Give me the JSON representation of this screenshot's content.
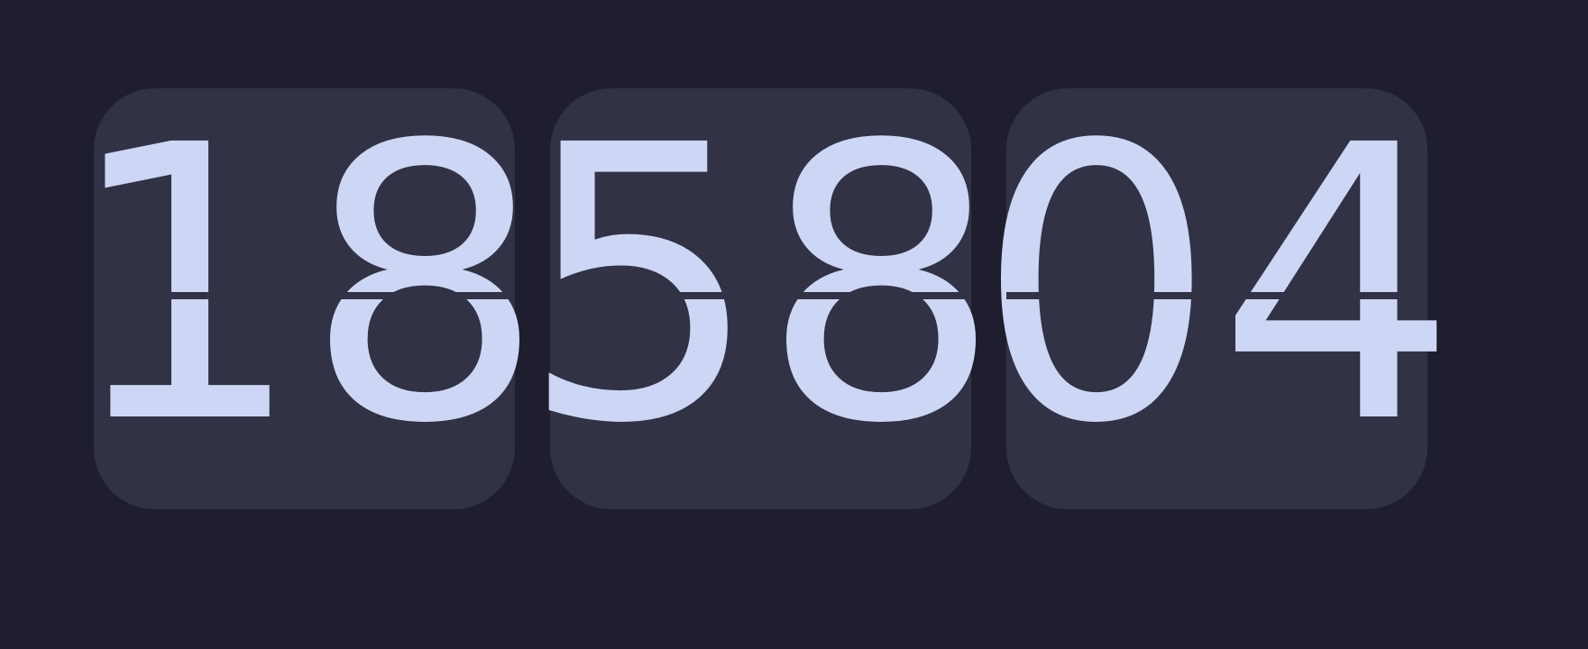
{
  "clock": {
    "hours": "18",
    "minutes": "58",
    "seconds": "04"
  },
  "colors": {
    "background": "#1f1e2e",
    "card": "#313245",
    "digit": "#cdd6f4"
  }
}
